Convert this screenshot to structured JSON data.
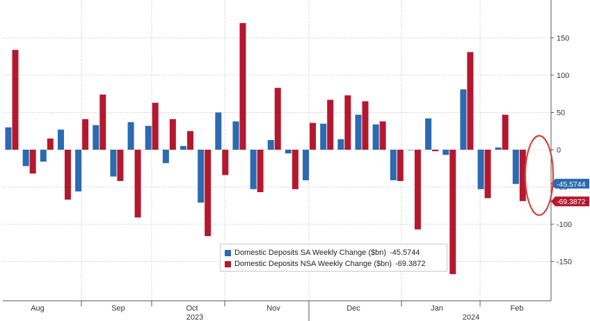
{
  "chart_data": {
    "type": "bar",
    "series": [
      {
        "name": "Domestic Deposits SA Weekly Change ($bn)",
        "last_value": "-45.5744",
        "color": "#2c6ab1",
        "values": [
          30,
          -22,
          -16,
          27,
          -56,
          33,
          -36,
          37,
          32,
          -18,
          5,
          -71,
          50,
          38,
          -53,
          13,
          -5,
          -41,
          35,
          14,
          47,
          34,
          -41,
          0,
          42,
          -7,
          81,
          -53,
          3,
          -46
        ]
      },
      {
        "name": "Domestic Deposits NSA Weekly Change ($bn)",
        "last_value": "-69.3872",
        "color": "#b5182e",
        "values": [
          134,
          -32,
          15,
          -67,
          41,
          74,
          -42,
          -91,
          63,
          41,
          25,
          -116,
          -34,
          170,
          -57,
          83,
          -53,
          36,
          67,
          73,
          65,
          38,
          -42,
          -107,
          -2,
          -167,
          131,
          -65,
          47,
          -69
        ]
      }
    ],
    "ylim": [
      -200,
      200
    ],
    "yticks": [
      -150,
      -100,
      -50,
      0,
      50,
      100,
      150
    ],
    "month_labels": [
      "Aug",
      "Sep",
      "Oct",
      "Nov",
      "Dec",
      "Jan",
      "Feb"
    ],
    "year_labels": [
      "2023",
      "2024"
    ],
    "value_flags": [
      {
        "text": "-45.5744",
        "value": -45.5744,
        "color": "#2c6ab1"
      },
      {
        "text": "-69.3872",
        "value": -69.3872,
        "color": "#b5182e"
      }
    ],
    "legend_position": "bottom-center",
    "annotation": "red ellipse circling the last week's bars"
  }
}
